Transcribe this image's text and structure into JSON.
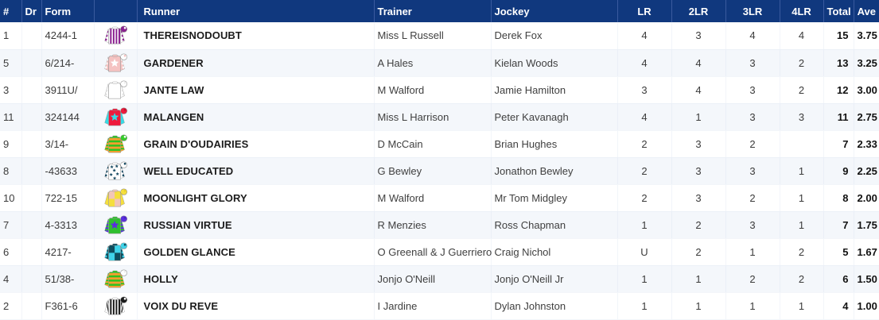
{
  "colors": {
    "header_bg": "#10387e",
    "header_text": "#ffffff",
    "header_divider": "#3a5a9e",
    "row_alt": "#f4f7fb",
    "table_bottom_border": "#c9d7ea"
  },
  "table": {
    "columns": [
      {
        "key": "num",
        "label": "#"
      },
      {
        "key": "dr",
        "label": "Dr"
      },
      {
        "key": "form",
        "label": "Form"
      },
      {
        "key": "silk",
        "label": ""
      },
      {
        "key": "runner",
        "label": "Runner"
      },
      {
        "key": "trainer",
        "label": "Trainer"
      },
      {
        "key": "jockey",
        "label": "Jockey"
      },
      {
        "key": "lr",
        "label": "LR"
      },
      {
        "key": "lr2",
        "label": "2LR"
      },
      {
        "key": "lr3",
        "label": "3LR"
      },
      {
        "key": "lr4",
        "label": "4LR"
      },
      {
        "key": "total",
        "label": "Total"
      },
      {
        "key": "ave",
        "label": "Ave"
      }
    ],
    "rows": [
      {
        "num": "1",
        "dr": "",
        "form": "4244-1",
        "runner": "THEREISNODOUBT",
        "trainer": "Miss L Russell",
        "jockey": "Derek Fox",
        "lr": "4",
        "lr2": "3",
        "lr3": "4",
        "lr4": "4",
        "total": "15",
        "ave": "3.75",
        "silk": {
          "icon": "silk-icon",
          "body": "#ffffff",
          "bodyPattern": "stripes",
          "bodyPatternColor": "#8a2090",
          "sleeves": "#ffffff",
          "sleevePattern": "spots",
          "sleevePatternColor": "#8a2090",
          "cap": "#8a2090",
          "capDot": "#ffffff"
        }
      },
      {
        "num": "5",
        "dr": "",
        "form": "6/214-",
        "runner": "GARDENER",
        "trainer": "A Hales",
        "jockey": "Kielan Woods",
        "lr": "4",
        "lr2": "4",
        "lr3": "3",
        "lr4": "2",
        "total": "13",
        "ave": "3.25",
        "silk": {
          "icon": "silk-icon",
          "body": "#f5c3c2",
          "bodyPattern": "star",
          "bodyPatternColor": "#ffffff",
          "sleeves": "#f5c3c2",
          "sleevePattern": "spots",
          "sleevePatternColor": "#ffffff",
          "cap": "#ffffff",
          "capDot": "#f5c3c2"
        }
      },
      {
        "num": "3",
        "dr": "",
        "form": "3911U/",
        "runner": "JANTE LAW",
        "trainer": "M Walford",
        "jockey": "Jamie Hamilton",
        "lr": "3",
        "lr2": "4",
        "lr3": "3",
        "lr4": "2",
        "total": "12",
        "ave": "3.00",
        "silk": {
          "icon": "silk-icon",
          "body": "#ffffff",
          "bodyPattern": "plain",
          "bodyPatternColor": "#e8e8e8",
          "sleeves": "#ffffff",
          "sleevePattern": "spots",
          "sleevePatternColor": "#e2e2e2",
          "cap": "#ffffff",
          "capDot": "#eeeeee"
        }
      },
      {
        "num": "11",
        "dr": "",
        "form": "324144",
        "runner": "MALANGEN",
        "trainer": "Miss L Harrison",
        "jockey": "Peter Kavanagh",
        "lr": "4",
        "lr2": "1",
        "lr3": "3",
        "lr4": "3",
        "total": "11",
        "ave": "2.75",
        "silk": {
          "icon": "silk-icon",
          "body": "#ee1a3c",
          "bodyPattern": "star",
          "bodyPatternColor": "#35dbe6",
          "sleeves": "#35dbe6",
          "sleevePattern": "plain",
          "sleevePatternColor": "#35dbe6",
          "cap": "#ee1a3c",
          "capDot": "#c0102e"
        }
      },
      {
        "num": "9",
        "dr": "",
        "form": "3/14-",
        "runner": "GRAIN D'OUDAIRIES",
        "trainer": "D McCain",
        "jockey": "Brian Hughes",
        "lr": "2",
        "lr2": "3",
        "lr3": "2",
        "lr4": "",
        "total": "7",
        "ave": "2.33",
        "silk": {
          "icon": "silk-icon",
          "body": "#2ec221",
          "bodyPattern": "hoops",
          "bodyPatternColor": "#f49f2e",
          "sleeves": "#2ec221",
          "sleevePattern": "hoops",
          "sleevePatternColor": "#f49f2e",
          "cap": "#35cc2a",
          "capDot": "#ffffff"
        }
      },
      {
        "num": "8",
        "dr": "",
        "form": "-43633",
        "runner": "WELL EDUCATED",
        "trainer": "G Bewley",
        "jockey": "Jonathon Bewley",
        "lr": "2",
        "lr2": "3",
        "lr3": "3",
        "lr4": "1",
        "total": "9",
        "ave": "2.25",
        "silk": {
          "icon": "silk-icon",
          "body": "#ffffff",
          "bodyPattern": "stars",
          "bodyPatternColor": "#174a63",
          "sleeves": "#ffffff",
          "sleevePattern": "spots",
          "sleevePatternColor": "#174a63",
          "cap": "#ffffff",
          "capDot": "#174a63"
        }
      },
      {
        "num": "10",
        "dr": "",
        "form": "722-15",
        "runner": "MOONLIGHT GLORY",
        "trainer": "M Walford",
        "jockey": "Mr Tom Midgley",
        "lr": "2",
        "lr2": "3",
        "lr3": "2",
        "lr4": "1",
        "total": "8",
        "ave": "2.00",
        "silk": {
          "icon": "silk-icon",
          "body": "#f2c6b8",
          "bodyPattern": "quarters",
          "bodyPatternColor": "#f5df3d",
          "sleeves": "#f5df3d",
          "sleevePattern": "plain",
          "sleevePatternColor": "#f5df3d",
          "cap": "#f5df3d",
          "capDot": "#e7cf2a"
        }
      },
      {
        "num": "7",
        "dr": "",
        "form": "4-3313",
        "runner": "RUSSIAN VIRTUE",
        "trainer": "R Menzies",
        "jockey": "Ross Chapman",
        "lr": "1",
        "lr2": "2",
        "lr3": "3",
        "lr4": "1",
        "total": "7",
        "ave": "1.75",
        "silk": {
          "icon": "silk-icon",
          "body": "#2fbf2f",
          "bodyPattern": "star",
          "bodyPatternColor": "#5b2ee0",
          "sleeves": "#2fbf2f",
          "sleevePattern": "hoops",
          "sleevePatternColor": "#5b2ee0",
          "cap": "#5b2ee0",
          "capDot": "#4a22c4"
        }
      },
      {
        "num": "6",
        "dr": "",
        "form": "4217-",
        "runner": "GOLDEN GLANCE",
        "trainer": "O Greenall & J Guerriero",
        "jockey": "Craig Nichol",
        "lr": "U",
        "lr2": "2",
        "lr3": "1",
        "lr4": "2",
        "total": "5",
        "ave": "1.67",
        "silk": {
          "icon": "silk-icon",
          "body": "#0e4e5e",
          "bodyPattern": "quarters",
          "bodyPatternColor": "#3fd4ea",
          "sleeves": "#0e4e5e",
          "sleevePattern": "spots",
          "sleevePatternColor": "#3fd4ea",
          "cap": "#3fd4ea",
          "capDot": "#0e4e5e"
        }
      },
      {
        "num": "4",
        "dr": "",
        "form": "51/38-",
        "runner": "HOLLY",
        "trainer": "Jonjo O'Neill",
        "jockey": "Jonjo O'Neill Jr",
        "lr": "1",
        "lr2": "1",
        "lr3": "2",
        "lr4": "2",
        "total": "6",
        "ave": "1.50",
        "silk": {
          "icon": "silk-icon",
          "body": "#2ec221",
          "bodyPattern": "hoops",
          "bodyPatternColor": "#f49f2e",
          "sleeves": "#2ec221",
          "sleevePattern": "hoops",
          "sleevePatternColor": "#f49f2e",
          "cap": "#ffffff",
          "capDot": "#eeeeee"
        }
      },
      {
        "num": "2",
        "dr": "",
        "form": "F361-6",
        "runner": "VOIX DU REVE",
        "trainer": "I Jardine",
        "jockey": "Dylan Johnston",
        "lr": "1",
        "lr2": "1",
        "lr3": "1",
        "lr4": "1",
        "total": "4",
        "ave": "1.00",
        "silk": {
          "icon": "silk-icon",
          "body": "#ffffff",
          "bodyPattern": "stripes",
          "bodyPatternColor": "#1a1a1a",
          "sleeves": "#ffffff",
          "sleevePattern": "stripes",
          "sleevePatternColor": "#1a1a1a",
          "cap": "#1a1a1a",
          "capDot": "#ffffff"
        }
      }
    ]
  }
}
